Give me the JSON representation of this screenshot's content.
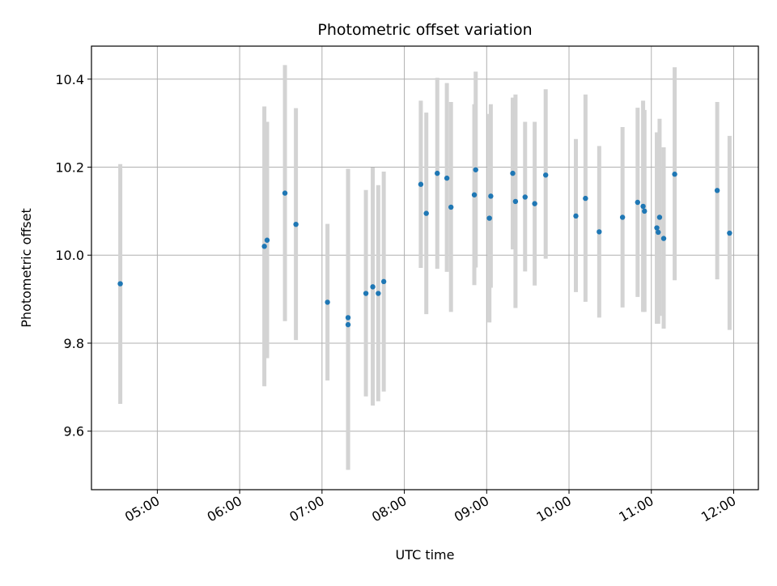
{
  "chart_data": {
    "type": "scatter",
    "title": "Photometric offset variation",
    "xlabel": "UTC time",
    "ylabel": "Photometric offset",
    "x_tick_labels": [
      "05:00",
      "06:00",
      "07:00",
      "08:00",
      "09:00",
      "10:00",
      "11:00",
      "12:00"
    ],
    "y_tick_labels": [
      "9.6",
      "9.8",
      "10.0",
      "10.2",
      "10.4"
    ],
    "xlim": [
      "04:12",
      "12:18"
    ],
    "ylim": [
      9.467,
      10.475
    ],
    "grid": true,
    "colors": {
      "point": "#1f77b4",
      "errorbar": "#d3d3d3",
      "grid": "#b0b0b0"
    },
    "x_tick_values": [
      "05:00",
      "06:00",
      "07:00",
      "08:00",
      "09:00",
      "10:00",
      "11:00",
      "12:00"
    ],
    "y_tick_values": [
      9.6,
      9.8,
      10.0,
      10.2,
      10.4
    ],
    "points": [
      {
        "t": "04:33",
        "y": 9.935,
        "lo": 9.662,
        "hi": 10.207
      },
      {
        "t": "06:18",
        "y": 10.02,
        "lo": 9.702,
        "hi": 10.338
      },
      {
        "t": "06:20",
        "y": 10.034,
        "lo": 9.766,
        "hi": 10.303
      },
      {
        "t": "06:33",
        "y": 10.141,
        "lo": 9.85,
        "hi": 10.432
      },
      {
        "t": "06:41",
        "y": 10.07,
        "lo": 9.807,
        "hi": 10.334
      },
      {
        "t": "07:04",
        "y": 9.893,
        "lo": 9.715,
        "hi": 10.071
      },
      {
        "t": "07:19",
        "y": 9.858,
        "lo": 9.512,
        "hi": 10.196
      },
      {
        "t": "07:19",
        "y": 9.842,
        "lo": 9.512,
        "hi": 10.196
      },
      {
        "t": "07:32",
        "y": 9.913,
        "lo": 9.679,
        "hi": 10.148
      },
      {
        "t": "07:37",
        "y": 9.928,
        "lo": 9.658,
        "hi": 10.199
      },
      {
        "t": "07:41",
        "y": 9.913,
        "lo": 9.668,
        "hi": 10.159
      },
      {
        "t": "07:45",
        "y": 9.94,
        "lo": 9.69,
        "hi": 10.19
      },
      {
        "t": "08:12",
        "y": 10.161,
        "lo": 9.971,
        "hi": 10.351
      },
      {
        "t": "08:16",
        "y": 10.095,
        "lo": 9.866,
        "hi": 10.324
      },
      {
        "t": "08:24",
        "y": 10.186,
        "lo": 9.969,
        "hi": 10.403
      },
      {
        "t": "08:31",
        "y": 10.175,
        "lo": 9.962,
        "hi": 10.391
      },
      {
        "t": "08:34",
        "y": 10.109,
        "lo": 9.871,
        "hi": 10.348
      },
      {
        "t": "08:51",
        "y": 10.137,
        "lo": 9.932,
        "hi": 10.343
      },
      {
        "t": "08:52",
        "y": 10.194,
        "lo": 9.972,
        "hi": 10.417
      },
      {
        "t": "09:02",
        "y": 10.084,
        "lo": 9.847,
        "hi": 10.321
      },
      {
        "t": "09:03",
        "y": 10.134,
        "lo": 9.926,
        "hi": 10.343
      },
      {
        "t": "09:19",
        "y": 10.186,
        "lo": 10.013,
        "hi": 10.358
      },
      {
        "t": "09:21",
        "y": 10.122,
        "lo": 9.88,
        "hi": 10.365
      },
      {
        "t": "09:28",
        "y": 10.132,
        "lo": 9.963,
        "hi": 10.303
      },
      {
        "t": "09:35",
        "y": 10.117,
        "lo": 9.931,
        "hi": 10.303
      },
      {
        "t": "09:43",
        "y": 10.182,
        "lo": 9.992,
        "hi": 10.377
      },
      {
        "t": "10:05",
        "y": 10.089,
        "lo": 9.916,
        "hi": 10.264
      },
      {
        "t": "10:12",
        "y": 10.129,
        "lo": 9.894,
        "hi": 10.365
      },
      {
        "t": "10:22",
        "y": 10.053,
        "lo": 9.858,
        "hi": 10.248
      },
      {
        "t": "10:39",
        "y": 10.086,
        "lo": 9.881,
        "hi": 10.291
      },
      {
        "t": "10:50",
        "y": 10.12,
        "lo": 9.905,
        "hi": 10.335
      },
      {
        "t": "10:54",
        "y": 10.111,
        "lo": 9.871,
        "hi": 10.351
      },
      {
        "t": "10:55",
        "y": 10.1,
        "lo": 9.871,
        "hi": 10.33
      },
      {
        "t": "11:04",
        "y": 10.062,
        "lo": 9.844,
        "hi": 10.279
      },
      {
        "t": "11:05",
        "y": 10.052,
        "lo": 9.844,
        "hi": 10.279
      },
      {
        "t": "11:06",
        "y": 10.086,
        "lo": 9.862,
        "hi": 10.31
      },
      {
        "t": "11:09",
        "y": 10.038,
        "lo": 9.833,
        "hi": 10.245
      },
      {
        "t": "11:17",
        "y": 10.184,
        "lo": 9.943,
        "hi": 10.427
      },
      {
        "t": "11:48",
        "y": 10.147,
        "lo": 9.945,
        "hi": 10.348
      },
      {
        "t": "11:57",
        "y": 10.05,
        "lo": 9.83,
        "hi": 10.271
      }
    ]
  }
}
